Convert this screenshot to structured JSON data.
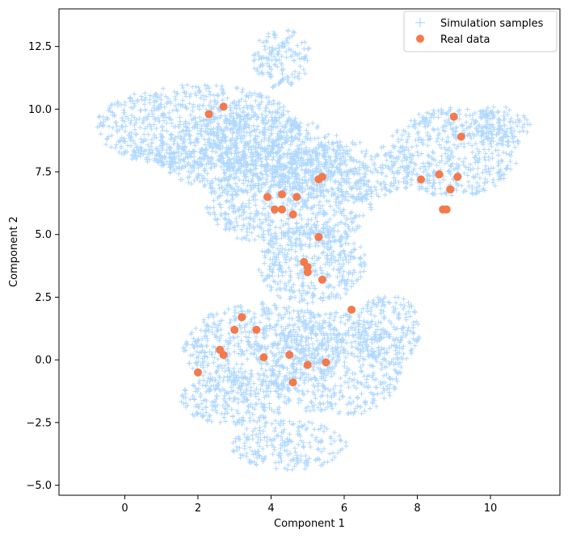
{
  "chart_data": {
    "type": "scatter",
    "title": "",
    "xlabel": "Component 1",
    "ylabel": "Component 2",
    "xlim": [
      -1.8,
      11.9
    ],
    "ylim": [
      -5.4,
      14.0
    ],
    "x_ticks": [
      0,
      2,
      4,
      6,
      8,
      10
    ],
    "y_ticks": [
      -5.0,
      -2.5,
      0.0,
      2.5,
      5.0,
      7.5,
      10.0,
      12.5
    ],
    "x_tick_labels": [
      "0",
      "2",
      "4",
      "6",
      "8",
      "10"
    ],
    "y_tick_labels": [
      "−5.0",
      "−2.5",
      "0.0",
      "2.5",
      "5.0",
      "7.5",
      "10.0",
      "12.5"
    ],
    "grid": false,
    "legend_position": "top-right",
    "colors": {
      "simulation": "#1e90ff",
      "real": "#f4794b"
    },
    "series": [
      {
        "name": "Simulation samples",
        "marker": "plus",
        "regions": [
          {
            "cx": 2.0,
            "cy": 9.3,
            "rx": 2.8,
            "ry": 1.7,
            "n": 900
          },
          {
            "cx": 3.5,
            "cy": 8.2,
            "rx": 2.6,
            "ry": 1.6,
            "n": 600
          },
          {
            "cx": 4.5,
            "cy": 6.4,
            "rx": 2.3,
            "ry": 2.0,
            "n": 700
          },
          {
            "cx": 6.0,
            "cy": 7.5,
            "rx": 2.0,
            "ry": 1.2,
            "n": 350
          },
          {
            "cx": 9.0,
            "cy": 8.3,
            "rx": 1.8,
            "ry": 1.8,
            "n": 500
          },
          {
            "cx": 10.2,
            "cy": 9.3,
            "rx": 0.9,
            "ry": 0.8,
            "n": 120
          },
          {
            "cx": 5.1,
            "cy": 3.8,
            "rx": 1.5,
            "ry": 1.6,
            "n": 400
          },
          {
            "cx": 3.8,
            "cy": 0.5,
            "rx": 2.2,
            "ry": 1.8,
            "n": 650
          },
          {
            "cx": 5.8,
            "cy": -0.2,
            "rx": 1.8,
            "ry": 2.1,
            "n": 500
          },
          {
            "cx": 7.2,
            "cy": 1.2,
            "rx": 0.9,
            "ry": 1.4,
            "n": 200
          },
          {
            "cx": 4.5,
            "cy": -3.4,
            "rx": 1.6,
            "ry": 1.0,
            "n": 220
          },
          {
            "cx": 3.0,
            "cy": -1.6,
            "rx": 1.5,
            "ry": 1.0,
            "n": 250
          },
          {
            "cx": 4.3,
            "cy": 12.0,
            "rx": 0.8,
            "ry": 1.2,
            "n": 150
          }
        ]
      },
      {
        "name": "Real data",
        "marker": "circle",
        "x": [
          2.3,
          2.7,
          5.3,
          5.4,
          4.3,
          4.7,
          3.9,
          4.1,
          4.3,
          4.6,
          5.3,
          4.9,
          5.0,
          5.0,
          5.4,
          3.2,
          3.6,
          3.0,
          2.6,
          2.7,
          3.8,
          4.5,
          5.0,
          5.5,
          6.2,
          4.6,
          2.0,
          8.1,
          8.6,
          9.1,
          8.9,
          8.7,
          8.8,
          9.0,
          9.2
        ],
        "y": [
          9.8,
          10.1,
          7.2,
          7.3,
          6.6,
          6.5,
          6.5,
          6.0,
          6.0,
          5.8,
          4.9,
          3.9,
          3.7,
          3.5,
          3.2,
          1.7,
          1.2,
          1.2,
          0.4,
          0.2,
          0.1,
          0.2,
          -0.2,
          -0.1,
          2.0,
          -0.9,
          -0.5,
          7.2,
          7.4,
          7.3,
          6.8,
          6.0,
          6.0,
          9.7,
          8.9
        ]
      }
    ]
  }
}
